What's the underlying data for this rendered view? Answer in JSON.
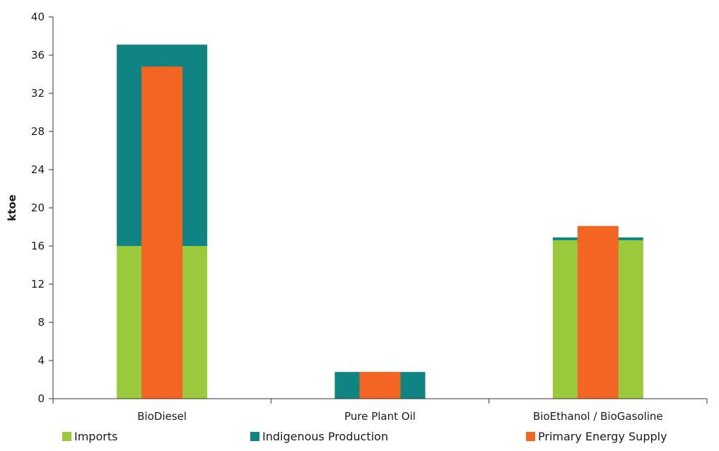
{
  "chart_data": {
    "type": "bar",
    "categories": [
      "BioDiesel",
      "Pure Plant Oil",
      "BioEthanol / BioGasoline"
    ],
    "series": [
      {
        "name": "Imports",
        "values": [
          16.0,
          0.0,
          16.6
        ],
        "color": "#9bc93c",
        "stack": "supply-sources"
      },
      {
        "name": "Indigenous Production",
        "values": [
          21.1,
          2.8,
          0.3
        ],
        "color": "#108482",
        "stack": "supply-sources"
      },
      {
        "name": "Primary Energy Supply",
        "values": [
          34.8,
          2.8,
          18.1
        ],
        "color": "#f26522",
        "stack": "overlay"
      }
    ],
    "ylabel": "ktoe",
    "xlabel": "",
    "ylim": [
      0,
      40
    ],
    "yticks": [
      0,
      4,
      8,
      12,
      16,
      20,
      24,
      28,
      32,
      36,
      40
    ],
    "grid": false,
    "legend_position": "bottom"
  }
}
